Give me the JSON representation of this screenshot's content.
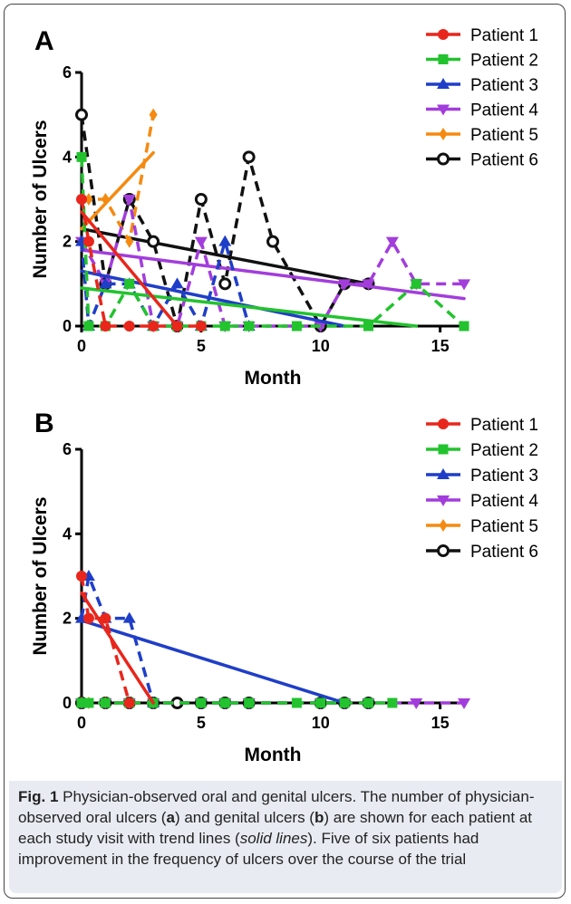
{
  "figure": {
    "caption": {
      "fig_label": "Fig. 1",
      "part1": " Physician-observed oral and genital ulcers. The number of physician-observed oral ulcers (",
      "a": "a",
      "part2": ") and genital ulcers (",
      "b": "b",
      "part3": ") are shown for each patient at each study visit with trend lines (",
      "solid": "solid lines",
      "part4": "). Five of six patients had improvement in the frequency of ulcers over the course of the trial"
    }
  },
  "colors": {
    "p1": "#e8261c",
    "p2": "#22c32e",
    "p3": "#1f3ec8",
    "p4": "#a23ddc",
    "p5": "#f58a10",
    "p6": "#111111"
  },
  "chart_data": [
    {
      "panel": "A",
      "type": "line",
      "xlabel": "Month",
      "ylabel": "Number of Ulcers",
      "xlim": [
        0,
        16
      ],
      "ylim": [
        0,
        6
      ],
      "xticks": [
        0,
        5,
        10,
        15
      ],
      "yticks": [
        0,
        2,
        4,
        6
      ],
      "legend_position": "top-right",
      "series": [
        {
          "name": "Patient 1",
          "color": "#e8261c",
          "marker": "circle",
          "x": [
            0,
            0.3,
            1,
            2,
            3,
            4,
            5
          ],
          "y": [
            3,
            2,
            0,
            0,
            0,
            0,
            0
          ],
          "trend": [
            [
              0,
              2.7
            ],
            [
              4,
              0
            ]
          ]
        },
        {
          "name": "Patient 2",
          "color": "#22c32e",
          "marker": "square",
          "x": [
            0,
            0.3,
            1,
            2,
            3,
            4,
            5,
            6,
            7,
            9,
            12,
            14,
            16
          ],
          "y": [
            4,
            0,
            0,
            1,
            0,
            0,
            0,
            0,
            0,
            0,
            0,
            1,
            0
          ],
          "trend": [
            [
              0,
              0.9
            ],
            [
              14,
              0
            ]
          ]
        },
        {
          "name": "Patient 3",
          "color": "#1f3ec8",
          "marker": "triangle-up",
          "x": [
            0,
            0.3,
            1,
            2,
            3,
            4,
            5,
            6,
            7
          ],
          "y": [
            2,
            0,
            1,
            1,
            0,
            1,
            0,
            2,
            0
          ],
          "trend": [
            [
              0,
              1.3
            ],
            [
              11,
              0
            ]
          ]
        },
        {
          "name": "Patient 4",
          "color": "#a23ddc",
          "marker": "triangle-down",
          "x": [
            0,
            1,
            2,
            3,
            4,
            5,
            6,
            7,
            10,
            11,
            12,
            13,
            14,
            16
          ],
          "y": [
            2,
            1,
            3,
            0,
            0,
            2,
            0,
            0,
            0,
            1,
            1,
            2,
            1,
            1
          ],
          "trend": [
            [
              0,
              1.8
            ],
            [
              16,
              0.65
            ]
          ]
        },
        {
          "name": "Patient 5",
          "color": "#f58a10",
          "marker": "diamond",
          "x": [
            0,
            0.3,
            1,
            2,
            3
          ],
          "y": [
            3,
            3,
            3,
            2,
            5
          ],
          "trend": [
            [
              0,
              2.3
            ],
            [
              3,
              4.1
            ]
          ]
        },
        {
          "name": "Patient 6",
          "color": "#111111",
          "marker": "open-circle",
          "x": [
            0,
            1,
            2,
            3,
            4,
            5,
            6,
            7,
            8,
            10,
            11,
            12
          ],
          "y": [
            5,
            1,
            3,
            2,
            0,
            3,
            1,
            4,
            2,
            0,
            1,
            1
          ],
          "trend": [
            [
              0,
              2.3
            ],
            [
              12,
              1
            ]
          ]
        }
      ]
    },
    {
      "panel": "B",
      "type": "line",
      "xlabel": "Month",
      "ylabel": "Number of Ulcers",
      "xlim": [
        0,
        16
      ],
      "ylim": [
        0,
        6
      ],
      "xticks": [
        0,
        5,
        10,
        15
      ],
      "yticks": [
        0,
        2,
        4,
        6
      ],
      "legend_position": "top-right",
      "series": [
        {
          "name": "Patient 1",
          "color": "#e8261c",
          "marker": "circle",
          "x": [
            0,
            0.3,
            1,
            2
          ],
          "y": [
            3,
            2,
            2,
            0
          ],
          "trend": [
            [
              0,
              2.6
            ],
            [
              3,
              0
            ]
          ]
        },
        {
          "name": "Patient 2",
          "color": "#22c32e",
          "marker": "square",
          "x": [
            0,
            0.3,
            1,
            2,
            3,
            5,
            6,
            7,
            9,
            10,
            11,
            12,
            13
          ],
          "y": [
            0,
            0,
            0,
            0,
            0,
            0,
            0,
            0,
            0,
            0,
            0,
            0,
            0
          ],
          "trend": null
        },
        {
          "name": "Patient 3",
          "color": "#1f3ec8",
          "marker": "triangle-up",
          "x": [
            0,
            0.3,
            1,
            2,
            3
          ],
          "y": [
            2,
            3,
            2,
            2,
            0
          ],
          "trend": [
            [
              0,
              1.95
            ],
            [
              11,
              0
            ]
          ]
        },
        {
          "name": "Patient 4",
          "color": "#a23ddc",
          "marker": "triangle-down",
          "x": [
            0,
            1,
            2,
            3,
            5,
            6,
            7,
            10,
            11,
            12,
            14,
            16
          ],
          "y": [
            0,
            0,
            0,
            0,
            0,
            0,
            0,
            0,
            0,
            0,
            0,
            0
          ],
          "trend": null
        },
        {
          "name": "Patient 5",
          "color": "#f58a10",
          "marker": "diamond",
          "x": [
            0,
            0.3,
            1,
            2,
            3
          ],
          "y": [
            0,
            0,
            0,
            0,
            0
          ],
          "trend": null
        },
        {
          "name": "Patient 6",
          "color": "#111111",
          "marker": "open-circle",
          "x": [
            0,
            1,
            2,
            3,
            4,
            5,
            6,
            7,
            10,
            11,
            12
          ],
          "y": [
            0,
            0,
            0,
            0,
            0,
            0,
            0,
            0,
            0,
            0,
            0
          ],
          "trend": null
        }
      ]
    }
  ]
}
